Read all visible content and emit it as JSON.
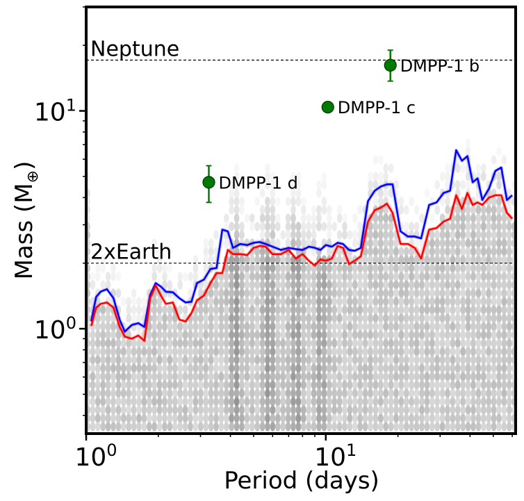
{
  "chart_data": {
    "type": "scatter",
    "xlabel": "Period (days)",
    "ylabel_main": "Mass (M",
    "ylabel_symbol": "⊕",
    "ylabel_close": ")",
    "x_scale": "log",
    "y_scale": "log",
    "xlim": [
      1.0,
      62.0
    ],
    "ylim": [
      0.33,
      30.0
    ],
    "x_ticks": [
      {
        "value": 1,
        "base": "10",
        "exp": "0"
      },
      {
        "value": 10,
        "base": "10",
        "exp": "1"
      }
    ],
    "y_ticks": [
      {
        "value": 1,
        "base": "10",
        "exp": "0"
      },
      {
        "value": 10,
        "base": "10",
        "exp": "1"
      }
    ],
    "reference_lines": [
      {
        "name": "Neptune",
        "y": 17.1,
        "label": "Neptune"
      },
      {
        "name": "2xEarth",
        "y": 2.0,
        "label": "2xEarth"
      }
    ],
    "planets": [
      {
        "name": "DMPP-1 b",
        "label": "DMPP-1 b",
        "period": 18.6,
        "mass": 16.2,
        "err_low": 2.5,
        "err_high": 2.8
      },
      {
        "name": "DMPP-1 c",
        "label": "DMPP-1 c",
        "period": 10.2,
        "mass": 10.4,
        "err_low": 0.2,
        "err_high": 0.2
      },
      {
        "name": "DMPP-1 d",
        "label": "DMPP-1 d",
        "period": 3.25,
        "mass": 4.7,
        "err_low": 0.9,
        "err_high": 0.9
      }
    ],
    "series": [
      {
        "name": "detection-limit-blue",
        "color": "#0000ff",
        "x": [
          1.05,
          1.1,
          1.15,
          1.22,
          1.3,
          1.38,
          1.45,
          1.55,
          1.65,
          1.75,
          1.85,
          1.95,
          2.05,
          2.15,
          2.3,
          2.45,
          2.6,
          2.75,
          2.9,
          3.1,
          3.3,
          3.5,
          3.7,
          3.9,
          4.1,
          4.4,
          4.7,
          5.0,
          5.3,
          5.6,
          6.0,
          6.5,
          7.0,
          7.5,
          8.0,
          8.5,
          9.0,
          9.5,
          10.0,
          10.6,
          11.2,
          11.8,
          12.5,
          13.2,
          14.0,
          15.0,
          16.0,
          17.0,
          18.0,
          19.0,
          20.5,
          22.0,
          23.5,
          25.0,
          27.0,
          29.0,
          31.0,
          33.0,
          35.0,
          37.0,
          39.0,
          41.0,
          43.0,
          45.0,
          48.0,
          51.0,
          54.0,
          57.0,
          60.0
        ],
        "values": [
          1.08,
          1.4,
          1.48,
          1.52,
          1.38,
          1.1,
          0.97,
          1.04,
          1.06,
          1.02,
          1.43,
          1.62,
          1.56,
          1.48,
          1.47,
          1.38,
          1.32,
          1.33,
          1.62,
          1.68,
          1.88,
          1.9,
          2.85,
          2.8,
          2.35,
          2.45,
          2.42,
          2.48,
          2.5,
          2.45,
          2.38,
          2.3,
          2.35,
          2.32,
          2.3,
          2.38,
          2.35,
          2.3,
          2.42,
          2.38,
          2.48,
          2.45,
          2.3,
          2.28,
          2.35,
          3.85,
          4.3,
          4.5,
          4.6,
          4.6,
          2.8,
          2.65,
          2.65,
          2.6,
          3.7,
          3.8,
          4.2,
          4.3,
          6.6,
          5.9,
          6.2,
          4.7,
          4.9,
          3.9,
          4.4,
          5.3,
          5.5,
          3.9,
          4.1
        ]
      },
      {
        "name": "detection-limit-red",
        "color": "#ff0000",
        "x": [
          1.05,
          1.1,
          1.15,
          1.22,
          1.3,
          1.38,
          1.45,
          1.55,
          1.65,
          1.75,
          1.85,
          1.95,
          2.05,
          2.15,
          2.3,
          2.45,
          2.6,
          2.75,
          2.9,
          3.1,
          3.3,
          3.5,
          3.7,
          3.9,
          4.1,
          4.4,
          4.7,
          5.0,
          5.3,
          5.6,
          6.0,
          6.5,
          7.0,
          7.5,
          8.0,
          8.5,
          9.0,
          9.5,
          10.0,
          10.6,
          11.2,
          11.8,
          12.5,
          13.2,
          14.0,
          15.0,
          16.0,
          17.0,
          18.0,
          19.0,
          20.5,
          22.0,
          23.5,
          25.0,
          27.0,
          29.0,
          31.0,
          33.0,
          35.0,
          37.0,
          39.0,
          41.0,
          43.0,
          45.0,
          48.0,
          51.0,
          54.0,
          57.0,
          60.0
        ],
        "values": [
          1.03,
          1.25,
          1.3,
          1.32,
          1.25,
          1.02,
          0.92,
          0.9,
          0.93,
          0.88,
          1.38,
          1.58,
          1.42,
          1.3,
          1.32,
          1.1,
          1.08,
          1.18,
          1.35,
          1.42,
          1.62,
          1.8,
          1.8,
          2.3,
          2.2,
          2.2,
          2.18,
          2.35,
          2.4,
          2.38,
          2.2,
          2.2,
          2.3,
          2.1,
          2.2,
          2.05,
          1.95,
          2.08,
          2.05,
          2.1,
          2.4,
          2.35,
          1.98,
          2.05,
          2.15,
          3.1,
          3.5,
          3.6,
          3.75,
          3.4,
          2.45,
          2.45,
          2.35,
          2.1,
          2.85,
          2.9,
          3.1,
          3.2,
          4.1,
          3.55,
          4.2,
          3.7,
          3.8,
          3.7,
          4.0,
          4.1,
          4.1,
          3.4,
          3.2
        ]
      }
    ],
    "background": "log-binned density histogram (greyscale hexbin) of injected signals"
  }
}
